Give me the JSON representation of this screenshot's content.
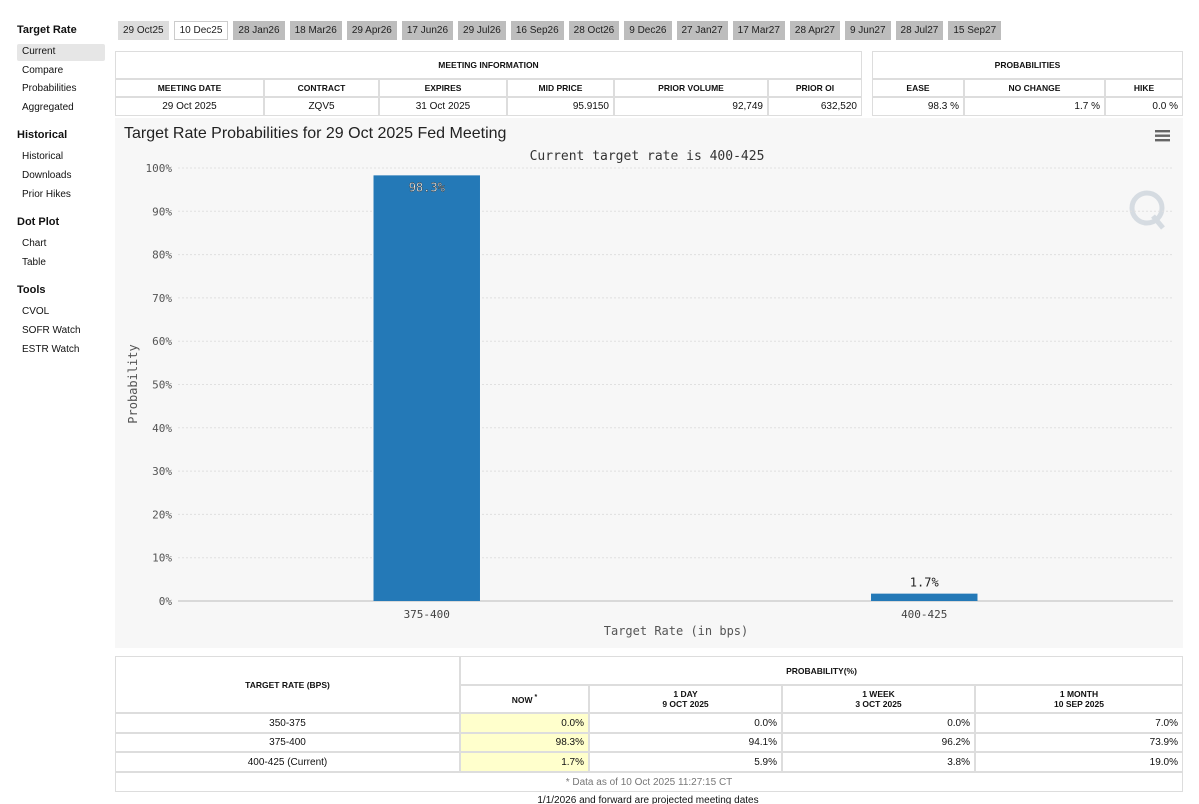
{
  "sidebar": [
    {
      "heading": "Target Rate",
      "items": [
        "Current",
        "Compare",
        "Probabilities",
        "Aggregated"
      ]
    },
    {
      "heading": "Historical",
      "items": [
        "Historical",
        "Downloads",
        "Prior Hikes"
      ]
    },
    {
      "heading": "Dot Plot",
      "items": [
        "Chart",
        "Table"
      ]
    },
    {
      "heading": "Tools",
      "items": [
        "CVOL",
        "SOFR Watch",
        "ESTR Watch"
      ]
    }
  ],
  "tabs": [
    "29 Oct25",
    "10 Dec25",
    "28 Jan26",
    "18 Mar26",
    "29 Apr26",
    "17 Jun26",
    "29 Jul26",
    "16 Sep26",
    "28 Oct26",
    "9 Dec26",
    "27 Jan27",
    "17 Mar27",
    "28 Apr27",
    "9 Jun27",
    "28 Jul27",
    "15 Sep27"
  ],
  "meeting_info": {
    "title": "MEETING INFORMATION",
    "columns": [
      "MEETING DATE",
      "CONTRACT",
      "EXPIRES",
      "MID PRICE",
      "PRIOR VOLUME",
      "PRIOR OI"
    ],
    "row": [
      "29 Oct 2025",
      "ZQV5",
      "31 Oct 2025",
      "95.9150",
      "92,749",
      "632,520"
    ]
  },
  "probabilities": {
    "title": "PROBABILITIES",
    "columns": [
      "EASE",
      "NO CHANGE",
      "HIKE"
    ],
    "row": [
      "98.3 %",
      "1.7 %",
      "0.0 %"
    ]
  },
  "chart_data": {
    "type": "bar",
    "title": "Target Rate Probabilities for 29 Oct 2025 Fed Meeting",
    "subtitle": "Current target rate is 400-425",
    "x_label": "Target Rate (in bps)",
    "y_label": "Probability",
    "categories": [
      "375-400",
      "400-425"
    ],
    "values": [
      98.3,
      1.7
    ],
    "value_labels": [
      "98.3%",
      "1.7%"
    ],
    "color": "#2479b7",
    "ylim": [
      0,
      100
    ],
    "grid": true,
    "yticks": [
      {
        "value": 0,
        "label": "0%"
      },
      {
        "value": 10,
        "label": "10%"
      },
      {
        "value": 20,
        "label": "20%"
      },
      {
        "value": 30,
        "label": "30%"
      },
      {
        "value": 40,
        "label": "40%"
      },
      {
        "value": 50,
        "label": "50%"
      },
      {
        "value": 60,
        "label": "60%"
      },
      {
        "value": 70,
        "label": "70%"
      },
      {
        "value": 80,
        "label": "80%"
      },
      {
        "value": 90,
        "label": "90%"
      },
      {
        "value": 100,
        "label": "100%"
      }
    ]
  },
  "history": {
    "rate_header": "TARGET RATE (BPS)",
    "prob_header": "PROBABILITY(%)",
    "columns": [
      {
        "label": "NOW",
        "note": "*"
      },
      {
        "label": "1 DAY",
        "date": "9 OCT 2025"
      },
      {
        "label": "1 WEEK",
        "date": "3 OCT 2025"
      },
      {
        "label": "1 MONTH",
        "date": "10 SEP 2025"
      }
    ],
    "rows": [
      [
        "350-375",
        "0.0%",
        "0.0%",
        "0.0%",
        "7.0%"
      ],
      [
        "375-400",
        "98.3%",
        "94.1%",
        "96.2%",
        "73.9%"
      ],
      [
        "400-425 (Current)",
        "1.7%",
        "5.9%",
        "3.8%",
        "19.0%"
      ]
    ],
    "footnote": "* Data as of 10 Oct 2025 11:27:15 CT"
  },
  "bottom_note": "1/1/2026 and forward are projected meeting dates"
}
